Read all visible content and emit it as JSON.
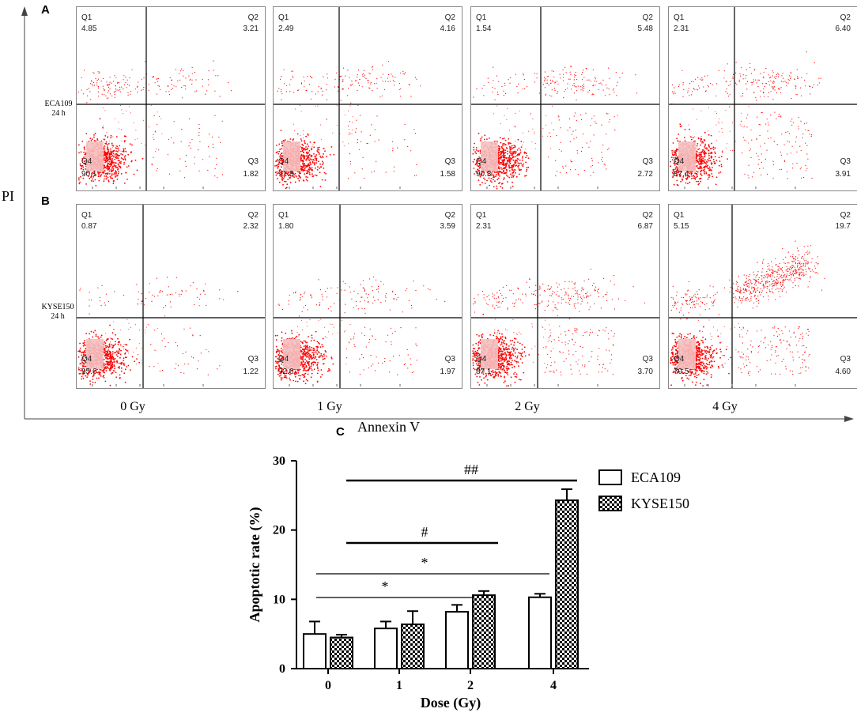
{
  "panel_labels": {
    "a": "A",
    "b": "B",
    "c": "C"
  },
  "y_axis_label": "PI",
  "x_axis_label": "Annexin V",
  "dose_labels": [
    "0 Gy",
    "1 Gy",
    "2 Gy",
    "4 Gy"
  ],
  "flow": {
    "quadrant_names": [
      "Q1",
      "Q2",
      "Q3",
      "Q4"
    ],
    "rows": [
      {
        "cell_line": "ECA109",
        "time": "24 h",
        "plots": [
          {
            "q1": "4.85",
            "q2": "3.21",
            "q3": "1.82",
            "q4": "90.1"
          },
          {
            "q1": "2.49",
            "q2": "4.16",
            "q3": "1.58",
            "q4": "91.8"
          },
          {
            "q1": "1.54",
            "q2": "5.48",
            "q3": "2.72",
            "q4": "90.3"
          },
          {
            "q1": "2.31",
            "q2": "6.40",
            "q3": "3.91",
            "q4": "87.4"
          }
        ]
      },
      {
        "cell_line": "KYSE150",
        "time": "24 h",
        "plots": [
          {
            "q1": "0.87",
            "q2": "2.32",
            "q3": "1.22",
            "q4": "95.6"
          },
          {
            "q1": "1.80",
            "q2": "3.59",
            "q3": "1.97",
            "q4": "92.6"
          },
          {
            "q1": "2.31",
            "q2": "6.87",
            "q3": "3.70",
            "q4": "87.1"
          },
          {
            "q1": "5.15",
            "q2": "19.7",
            "q3": "4.60",
            "q4": "70.5"
          }
        ]
      }
    ]
  },
  "colors": {
    "dots": "#ff0000",
    "dense": "#ff1a1a",
    "box": "#f4c0c0"
  },
  "chart_data": {
    "type": "bar",
    "title": "",
    "xlabel": "Dose (Gy)",
    "ylabel": "Apoptotic rate (%)",
    "categories": [
      "0",
      "1",
      "2",
      "4"
    ],
    "ylim": [
      0,
      30
    ],
    "yticks": [
      "0",
      "10",
      "20",
      "30"
    ],
    "series": [
      {
        "name": "ECA109",
        "pattern": "open",
        "values": [
          5.0,
          5.8,
          8.2,
          10.3
        ],
        "errors": [
          1.8,
          1.0,
          1.0,
          0.5
        ]
      },
      {
        "name": "KYSE150",
        "pattern": "checkered",
        "values": [
          4.5,
          6.4,
          10.6,
          24.3
        ],
        "errors": [
          0.4,
          1.9,
          0.6,
          1.6
        ]
      }
    ],
    "annotations": [
      {
        "label": "##",
        "from": "0",
        "to": "4"
      },
      {
        "label": "#",
        "from": "0",
        "to": "2"
      },
      {
        "label": "*",
        "from": "0",
        "to": "4"
      },
      {
        "label": "*",
        "from": "0",
        "to": "2"
      }
    ],
    "legend": "top-right"
  }
}
